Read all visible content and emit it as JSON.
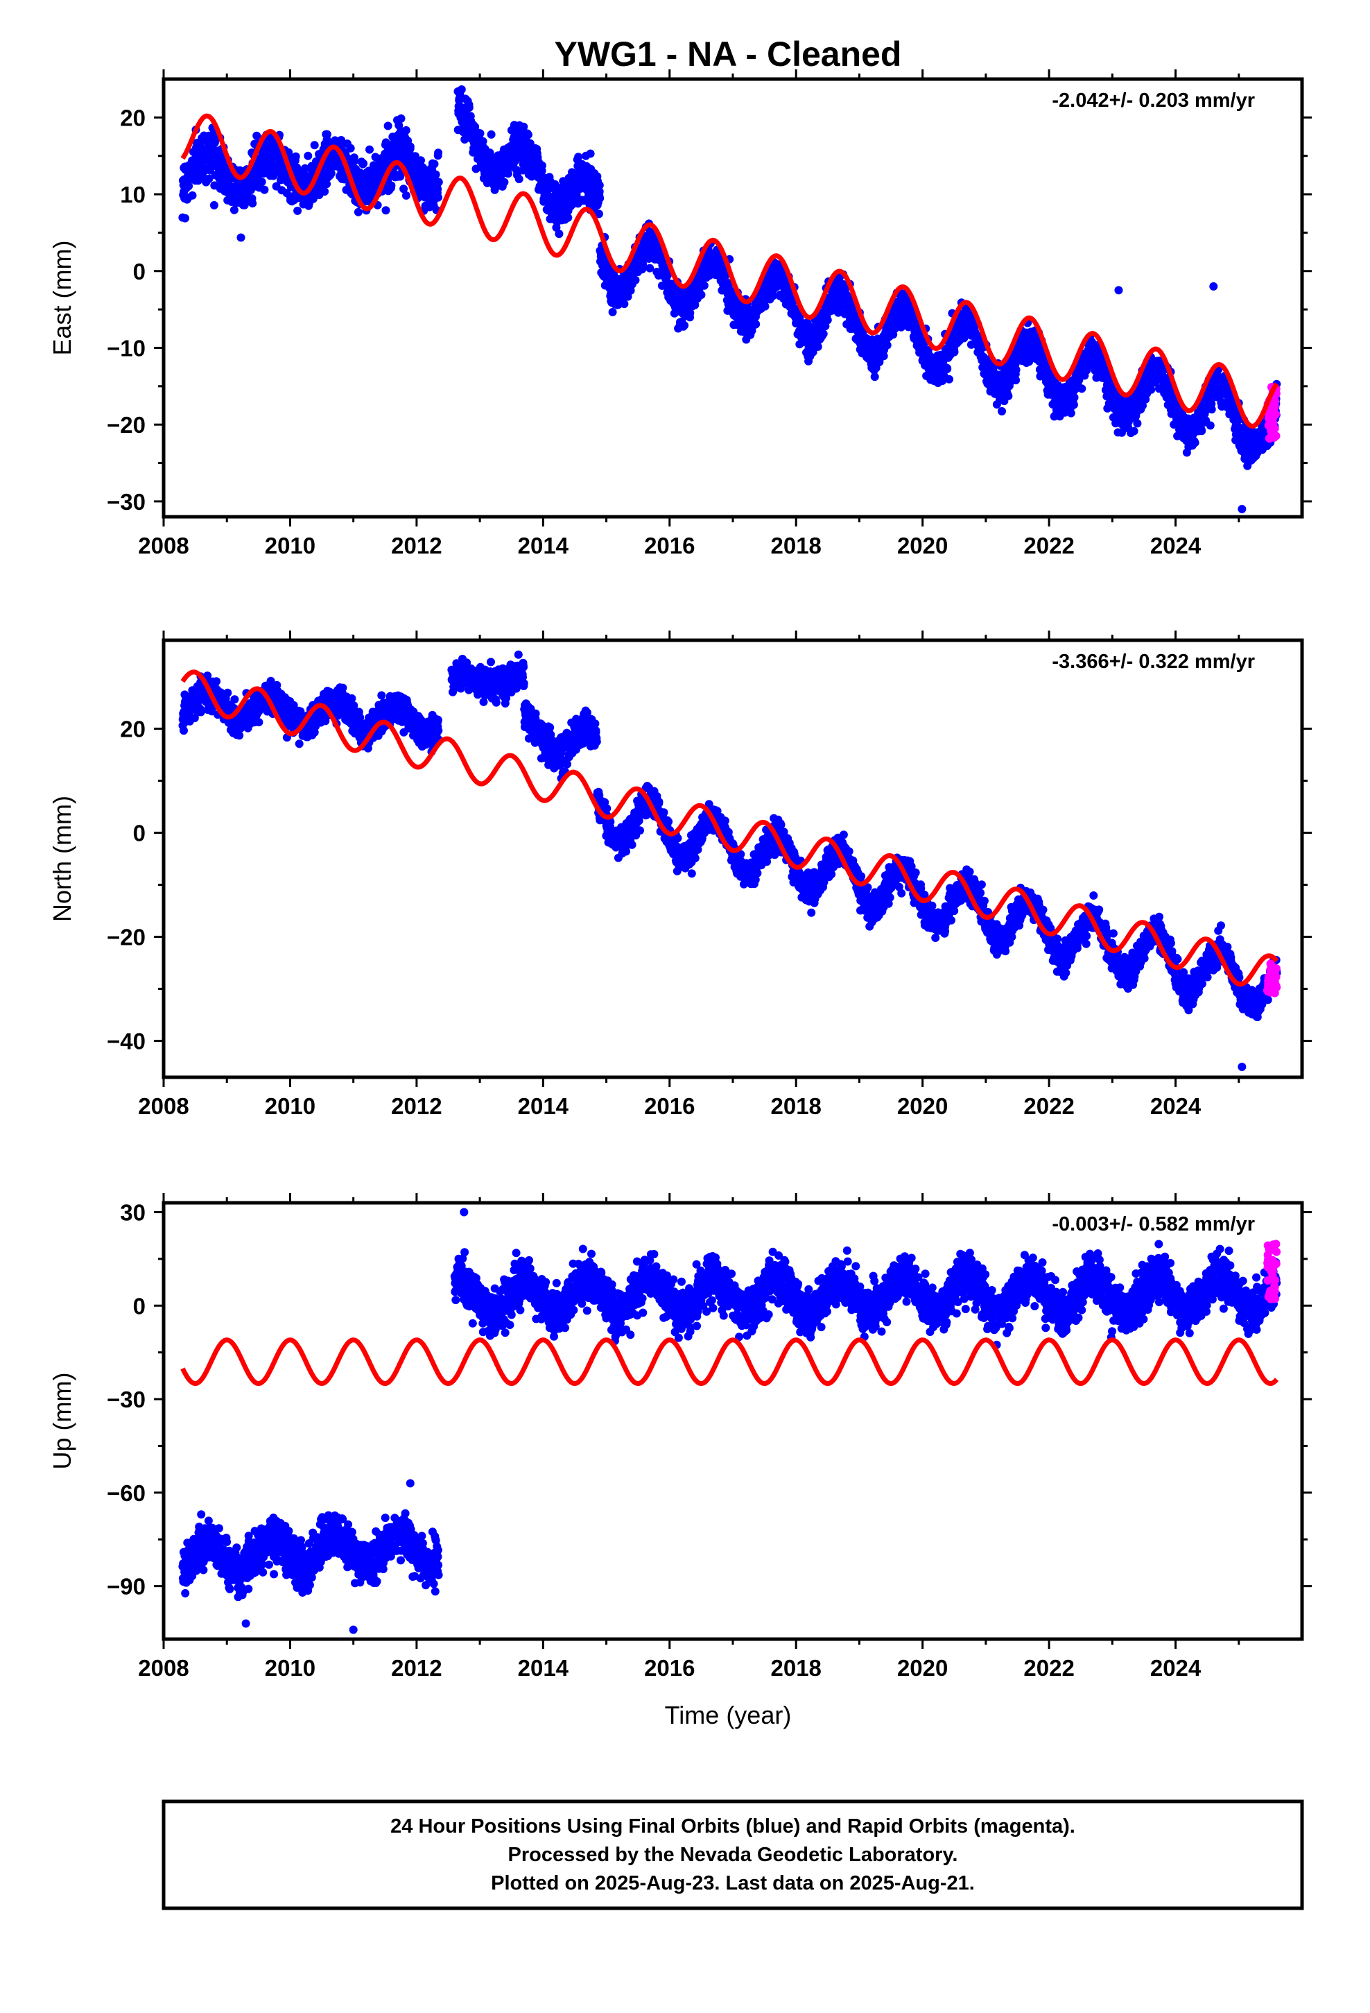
{
  "title": "YWG1  - NA - Cleaned",
  "xlabel": "Time (year)",
  "colors": {
    "final": "#0000ff",
    "rapid": "#ff00ff",
    "model": "#ff0000",
    "frame": "#000000"
  },
  "chart_data": [
    {
      "type": "scatter",
      "ylabel": "East (mm)",
      "rate_label": "-2.042+/- 0.203 mm/yr",
      "xlim": [
        2008.0,
        2026.0
      ],
      "ylim": [
        -32,
        25
      ],
      "x_ticks": [
        "2008",
        "2010",
        "2012",
        "2014",
        "2016",
        "2018",
        "2020",
        "2022",
        "2024"
      ],
      "y_ticks": [
        "20",
        "10",
        "0",
        "−10",
        "−20",
        "−30"
      ],
      "y_tick_values": [
        20,
        10,
        0,
        -10,
        -20,
        -30
      ],
      "data_range": [
        2008.3,
        2025.6
      ],
      "gap": [
        2012.35,
        2012.65
      ],
      "segments": [
        {
          "x": [
            2008.3,
            2012.35
          ],
          "baseline": [
            13.0,
            13.0
          ],
          "amplitude": 2.2,
          "scatter": 2.2
        },
        {
          "x": [
            2012.65,
            2014.9
          ],
          "baseline": [
            18.0,
            8.5
          ],
          "amplitude": 2.8,
          "scatter": 2.0
        },
        {
          "x": [
            2014.9,
            2025.6
          ],
          "baseline": [
            1.5,
            -20.5
          ],
          "amplitude": 3.5,
          "scatter": 1.6
        }
      ],
      "model": {
        "x": [
          2008.3,
          2025.6
        ],
        "y": [
          17.5,
          -17.5
        ],
        "amplitude": 3.5,
        "phase_year": 2008.7
      },
      "outliers": [
        {
          "x": 2023.1,
          "y": -2.5
        },
        {
          "x": 2024.6,
          "y": -2.0
        },
        {
          "x": 2025.05,
          "y": -31.0
        }
      ],
      "rapid": {
        "x": [
          2025.45,
          2025.6
        ],
        "y": [
          -22,
          -15
        ]
      }
    },
    {
      "type": "scatter",
      "ylabel": "North (mm)",
      "rate_label": "-3.366+/- 0.322 mm/yr",
      "xlim": [
        2008.0,
        2026.0
      ],
      "ylim": [
        -47,
        37
      ],
      "x_ticks": [
        "2008",
        "2010",
        "2012",
        "2014",
        "2016",
        "2018",
        "2020",
        "2022",
        "2024"
      ],
      "y_ticks": [
        "20",
        "0",
        "−20",
        "−40"
      ],
      "y_tick_values": [
        20,
        0,
        -20,
        -40
      ],
      "data_range": [
        2008.3,
        2025.6
      ],
      "gap": [
        2012.35,
        2012.55
      ],
      "segments": [
        {
          "x": [
            2008.3,
            2012.35
          ],
          "baseline": [
            25.0,
            21.0
          ],
          "amplitude": 2.5,
          "scatter": 2.0
        },
        {
          "x": [
            2012.55,
            2013.7
          ],
          "baseline": [
            29.5,
            29.5
          ],
          "amplitude": 1.0,
          "scatter": 2.0
        },
        {
          "x": [
            2013.7,
            2014.85
          ],
          "baseline": [
            20.0,
            16.0
          ],
          "amplitude": 3.0,
          "scatter": 2.2
        },
        {
          "x": [
            2014.85,
            2025.6
          ],
          "baseline": [
            4.0,
            -30.0
          ],
          "amplitude": 4.5,
          "scatter": 2.0
        }
      ],
      "model": {
        "x": [
          2008.3,
          2025.6
        ],
        "y": [
          28.0,
          -27.5
        ],
        "amplitude": 3.5,
        "phase_year": 2008.5
      },
      "outliers": [
        {
          "x": 2025.05,
          "y": -45.0
        }
      ],
      "rapid": {
        "x": [
          2025.45,
          2025.6
        ],
        "y": [
          -31,
          -25
        ]
      }
    },
    {
      "type": "scatter",
      "ylabel": "Up (mm)",
      "rate_label": "-0.003+/- 0.582 mm/yr",
      "xlim": [
        2008.0,
        2026.0
      ],
      "ylim": [
        -107,
        33
      ],
      "x_ticks": [
        "2008",
        "2010",
        "2012",
        "2014",
        "2016",
        "2018",
        "2020",
        "2022",
        "2024"
      ],
      "y_ticks": [
        "30",
        "0",
        "−30",
        "−60",
        "−90"
      ],
      "y_tick_values": [
        30,
        0,
        -30,
        -60,
        -90
      ],
      "data_range": [
        2008.3,
        2025.6
      ],
      "gap": [
        2012.35,
        2012.6
      ],
      "segments": [
        {
          "x": [
            2008.3,
            2012.35
          ],
          "baseline": [
            -81.0,
            -77.0
          ],
          "amplitude": 5.0,
          "scatter": 5.0
        },
        {
          "x": [
            2012.6,
            2025.6
          ],
          "baseline": [
            3.0,
            4.0
          ],
          "amplitude": 5.5,
          "scatter": 5.0
        }
      ],
      "model": {
        "x": [
          2008.3,
          2025.6
        ],
        "y": [
          -18.0,
          -18.0
        ],
        "amplitude": 7.0,
        "phase_year": 2008.0
      },
      "outliers": [
        {
          "x": 2012.75,
          "y": 30.0
        },
        {
          "x": 2009.3,
          "y": -102.0
        },
        {
          "x": 2011.0,
          "y": -104.0
        },
        {
          "x": 2011.9,
          "y": -57.0
        }
      ],
      "rapid": {
        "x": [
          2025.45,
          2025.6
        ],
        "y": [
          2,
          20
        ]
      }
    }
  ],
  "footer": [
    "24 Hour Positions Using Final Orbits (blue) and Rapid Orbits (magenta).",
    "Processed by the Nevada Geodetic Laboratory.",
    "Plotted on 2025-Aug-23. Last data on 2025-Aug-21."
  ]
}
